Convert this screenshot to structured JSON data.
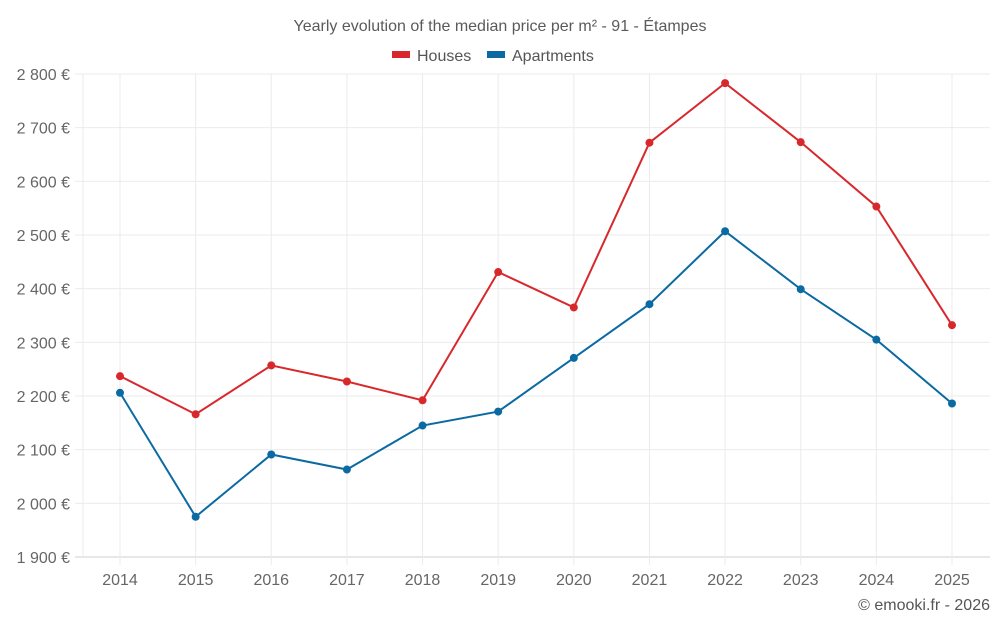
{
  "chart_data": {
    "type": "line",
    "title": "Yearly evolution of the median price per m² - 91 - Étampes",
    "xlabel": "",
    "ylabel": "",
    "categories": [
      "2014",
      "2015",
      "2016",
      "2017",
      "2018",
      "2019",
      "2020",
      "2021",
      "2022",
      "2023",
      "2024",
      "2025"
    ],
    "ylim": [
      1900,
      2800
    ],
    "yticks": [
      1900,
      2000,
      2100,
      2200,
      2300,
      2400,
      2500,
      2600,
      2700,
      2800
    ],
    "ytick_labels": [
      "1 900 €",
      "2 000 €",
      "2 100 €",
      "2 200 €",
      "2 300 €",
      "2 400 €",
      "2 500 €",
      "2 600 €",
      "2 700 €",
      "2 800 €"
    ],
    "grid": true,
    "legend_position": "top-center",
    "series": [
      {
        "name": "Houses",
        "color": "#d8282c",
        "values": [
          2237,
          2166,
          2257,
          2227,
          2192,
          2431,
          2365,
          2672,
          2783,
          2673,
          2553,
          2332
        ]
      },
      {
        "name": "Apartments",
        "color": "#0b6aa2",
        "values": [
          2206,
          1975,
          2091,
          2063,
          2145,
          2171,
          2271,
          2371,
          2507,
          2399,
          2305,
          2186
        ]
      }
    ],
    "credit": "© emooki.fr - 2026"
  }
}
